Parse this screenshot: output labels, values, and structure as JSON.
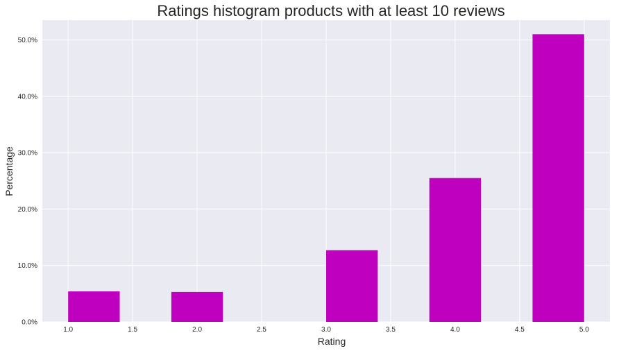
{
  "chart_data": {
    "type": "bar",
    "title": "Ratings histogram products with at least 10 reviews",
    "xlabel": "Rating",
    "ylabel": "Percentage",
    "xlim": [
      0.8,
      5.2
    ],
    "ylim": [
      0,
      53.5
    ],
    "x_ticks": [
      "1.0",
      "1.5",
      "2.0",
      "2.5",
      "3.0",
      "3.5",
      "4.0",
      "4.5",
      "5.0"
    ],
    "y_ticks": [
      "0.0%",
      "10.0%",
      "20.0%",
      "30.0%",
      "40.0%",
      "50.0%"
    ],
    "bins": [
      {
        "x_start": 1.0,
        "x_end": 1.4,
        "value": 5.4
      },
      {
        "x_start": 1.4,
        "x_end": 1.8,
        "value": 0
      },
      {
        "x_start": 1.8,
        "x_end": 2.2,
        "value": 5.3
      },
      {
        "x_start": 2.2,
        "x_end": 2.6,
        "value": 0
      },
      {
        "x_start": 2.6,
        "x_end": 3.0,
        "value": 0
      },
      {
        "x_start": 3.0,
        "x_end": 3.4,
        "value": 12.7
      },
      {
        "x_start": 3.4,
        "x_end": 3.8,
        "value": 0
      },
      {
        "x_start": 3.8,
        "x_end": 4.2,
        "value": 25.5
      },
      {
        "x_start": 4.2,
        "x_end": 4.6,
        "value": 0
      },
      {
        "x_start": 4.6,
        "x_end": 5.0,
        "value": 51.0
      }
    ],
    "grid": true,
    "colors": {
      "bar": "#bf00bf",
      "background": "#eaeaf2",
      "grid": "#ffffff"
    }
  }
}
